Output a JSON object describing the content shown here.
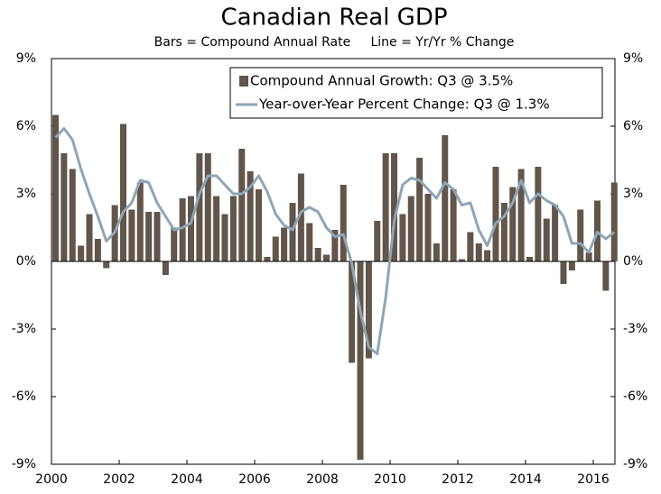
{
  "chart_data": {
    "type": "bar_line",
    "title": "Canadian Real GDP",
    "subtitle": "Bars = Compound Annual Rate     Line = Yr/Yr % Change",
    "categories": [
      "2000",
      null,
      null,
      null,
      null,
      null,
      null,
      null,
      "2002",
      null,
      null,
      null,
      null,
      null,
      null,
      null,
      "2004",
      null,
      null,
      null,
      null,
      null,
      null,
      null,
      "2006",
      null,
      null,
      null,
      null,
      null,
      null,
      null,
      "2008",
      null,
      null,
      null,
      null,
      null,
      null,
      null,
      "2010",
      null,
      null,
      null,
      null,
      null,
      null,
      null,
      "2012",
      null,
      null,
      null,
      null,
      null,
      null,
      null,
      "2014",
      null,
      null,
      null,
      null,
      null,
      null,
      null,
      "2016",
      null,
      null
    ],
    "series": [
      {
        "name": "Compound Annual Growth: Q3 @ 3.5%",
        "type": "bar",
        "color": "#62554a",
        "axis": "y",
        "values": [
          6.5,
          4.8,
          4.1,
          0.7,
          2.1,
          1.0,
          -0.3,
          2.5,
          6.1,
          2.3,
          3.5,
          2.2,
          2.2,
          -0.6,
          1.5,
          2.8,
          2.9,
          4.8,
          4.8,
          2.9,
          2.1,
          2.9,
          5.0,
          4.0,
          3.2,
          0.2,
          1.1,
          1.5,
          2.6,
          3.9,
          1.7,
          0.6,
          0.3,
          1.4,
          3.4,
          -4.5,
          -8.8,
          -4.3,
          1.8,
          4.8,
          4.8,
          2.1,
          2.9,
          4.6,
          3.0,
          0.8,
          5.6,
          3.2,
          0.1,
          1.3,
          0.8,
          0.5,
          4.2,
          2.6,
          3.3,
          4.1,
          0.2,
          4.2,
          1.9,
          2.5,
          -1.0,
          -0.4,
          2.3,
          0.4,
          2.7,
          -1.3,
          3.5
        ]
      },
      {
        "name": "Year-over-Year Percent Change: Q3 @ 1.3%",
        "type": "line",
        "color": "#8ea5b6",
        "axis": "y2",
        "values": [
          5.5,
          5.9,
          5.4,
          4.1,
          3.0,
          2.0,
          0.9,
          1.3,
          2.2,
          2.6,
          3.6,
          3.5,
          2.6,
          2.0,
          1.4,
          1.5,
          1.7,
          3.0,
          3.8,
          3.8,
          3.4,
          3.0,
          3.0,
          3.3,
          3.8,
          3.1,
          2.1,
          1.6,
          1.4,
          2.2,
          2.4,
          2.2,
          1.5,
          1.1,
          1.2,
          -0.1,
          -2.2,
          -3.8,
          -4.1,
          -1.6,
          1.8,
          3.4,
          3.7,
          3.6,
          3.2,
          2.8,
          3.5,
          3.2,
          2.5,
          2.6,
          1.4,
          0.7,
          1.7,
          2.0,
          2.6,
          3.6,
          2.6,
          3.0,
          2.7,
          2.5,
          2.0,
          0.8,
          0.8,
          0.4,
          1.3,
          1.0,
          1.3
        ]
      }
    ],
    "ylim": [
      -9,
      9
    ],
    "yticks": [
      {
        "value": -9,
        "label": "-9%"
      },
      {
        "value": -6,
        "label": "-6%"
      },
      {
        "value": -3,
        "label": "-3%"
      },
      {
        "value": 0,
        "label": "0%"
      },
      {
        "value": 3,
        "label": "3%"
      },
      {
        "value": 6,
        "label": "6%"
      },
      {
        "value": 9,
        "label": "9%"
      }
    ],
    "y2lim": [
      -9,
      9
    ],
    "y2ticks": [
      {
        "value": -9,
        "label": "-9%"
      },
      {
        "value": -6,
        "label": "-6%"
      },
      {
        "value": -3,
        "label": "-3%"
      },
      {
        "value": 0,
        "label": "0%"
      },
      {
        "value": 3,
        "label": "3%"
      },
      {
        "value": 6,
        "label": "6%"
      },
      {
        "value": 9,
        "label": "9%"
      }
    ],
    "legend": "top-right",
    "grid": false
  }
}
